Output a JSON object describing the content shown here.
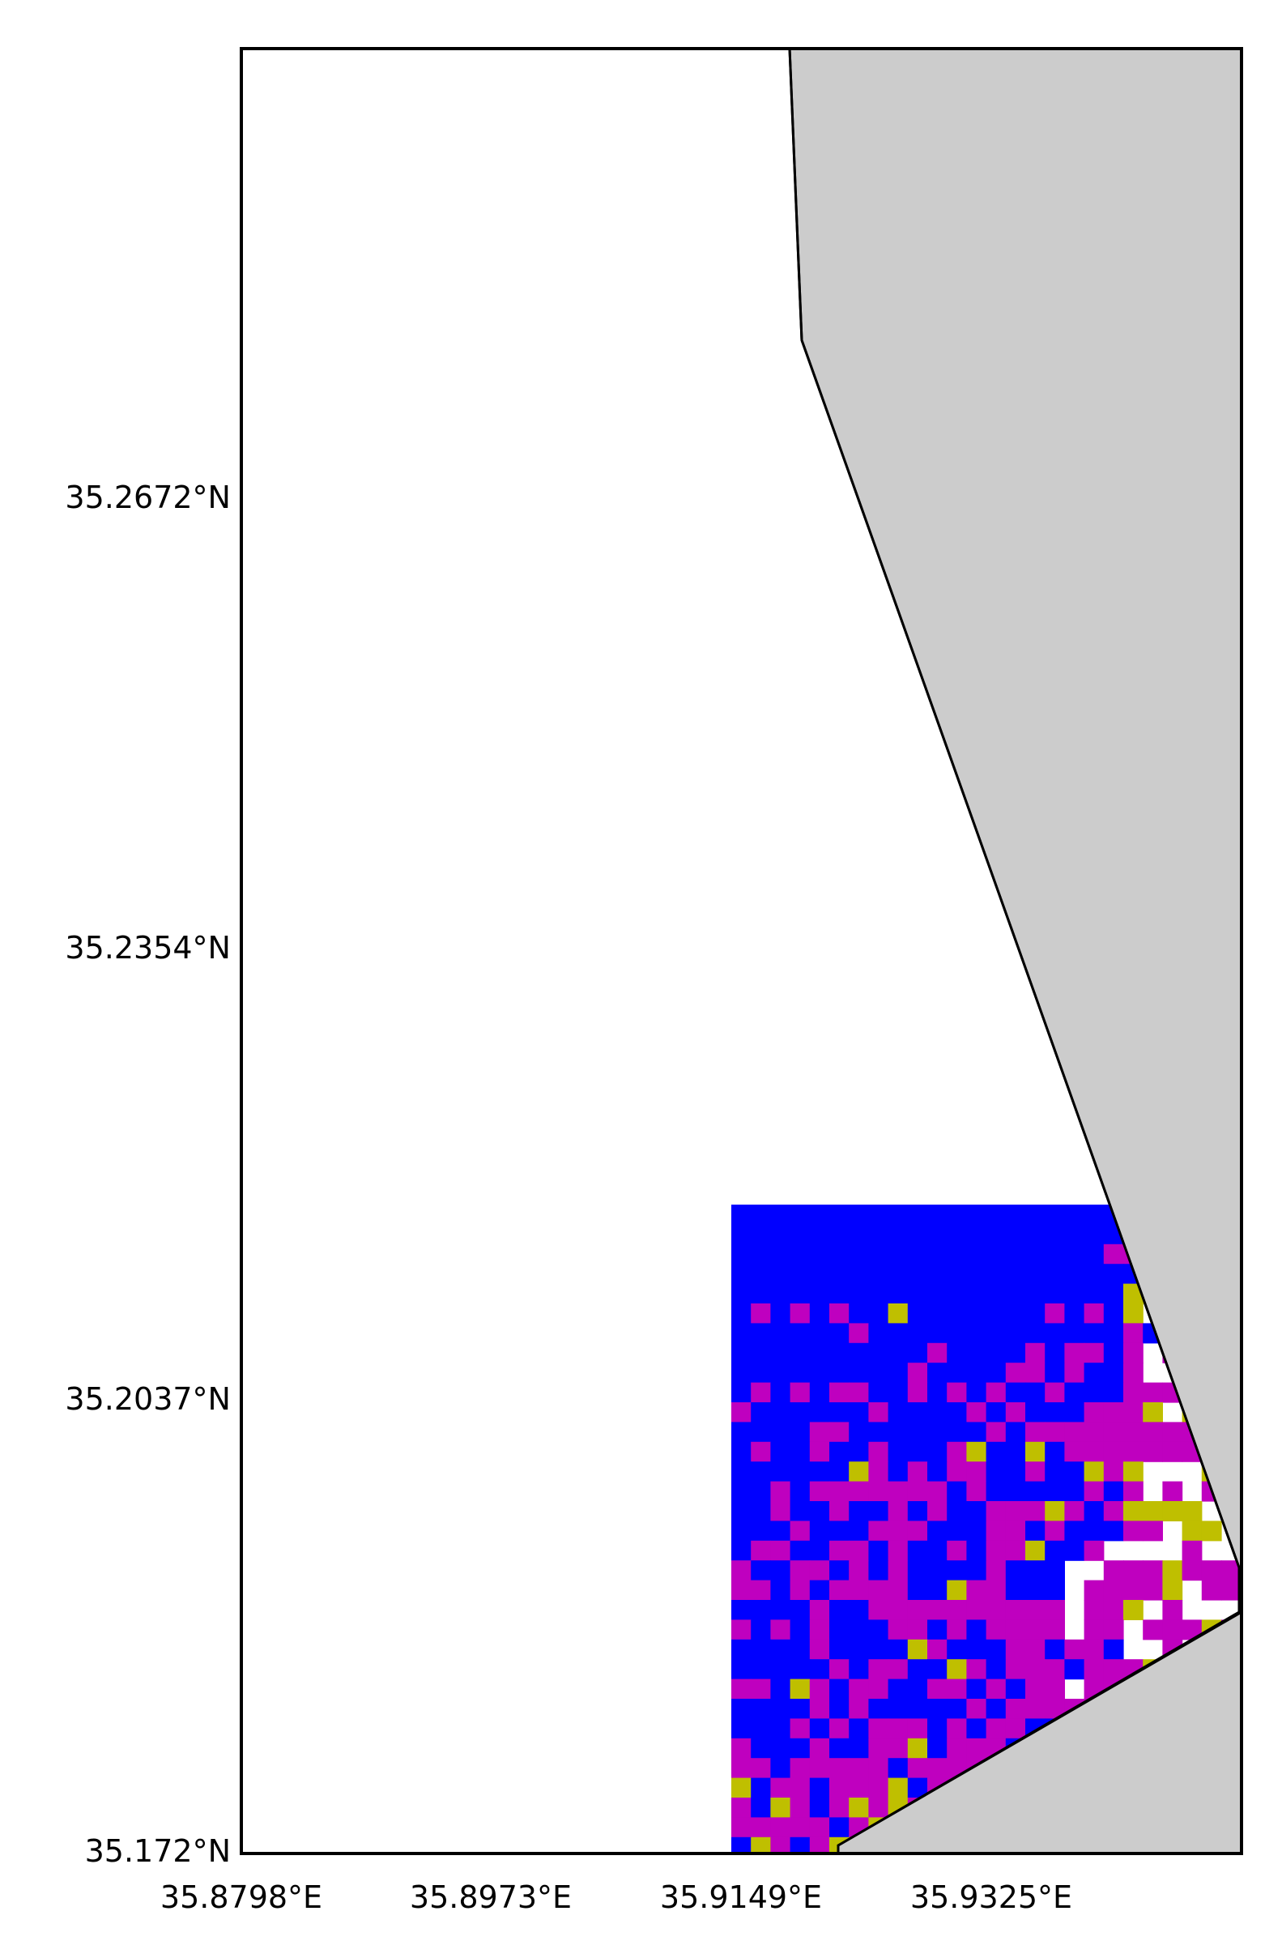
{
  "map": {
    "type": "raster-classification-map",
    "colors": {
      "background": "#ffffff",
      "land": "#cccccc",
      "outline": "#000000",
      "class_blue": "#0000ff",
      "class_magenta": "#bf00bf",
      "class_olive": "#bfbf00"
    },
    "extent": {
      "lon_min": 35.8798,
      "lon_max": 35.9524,
      "lat_min": 35.172,
      "lat_max": 35.2992
    },
    "x_ticks": [
      "35.8798°E",
      "35.8973°E",
      "35.9149°E",
      "35.9325°E"
    ],
    "y_ticks": [
      "35.2672°N",
      "35.2354°N",
      "35.2037°N",
      "35.172°N"
    ],
    "x_tick_values": [
      35.8798,
      35.8973,
      35.9149,
      35.9325
    ],
    "y_tick_values": [
      35.2672,
      35.2354,
      35.2037,
      35.172
    ]
  }
}
